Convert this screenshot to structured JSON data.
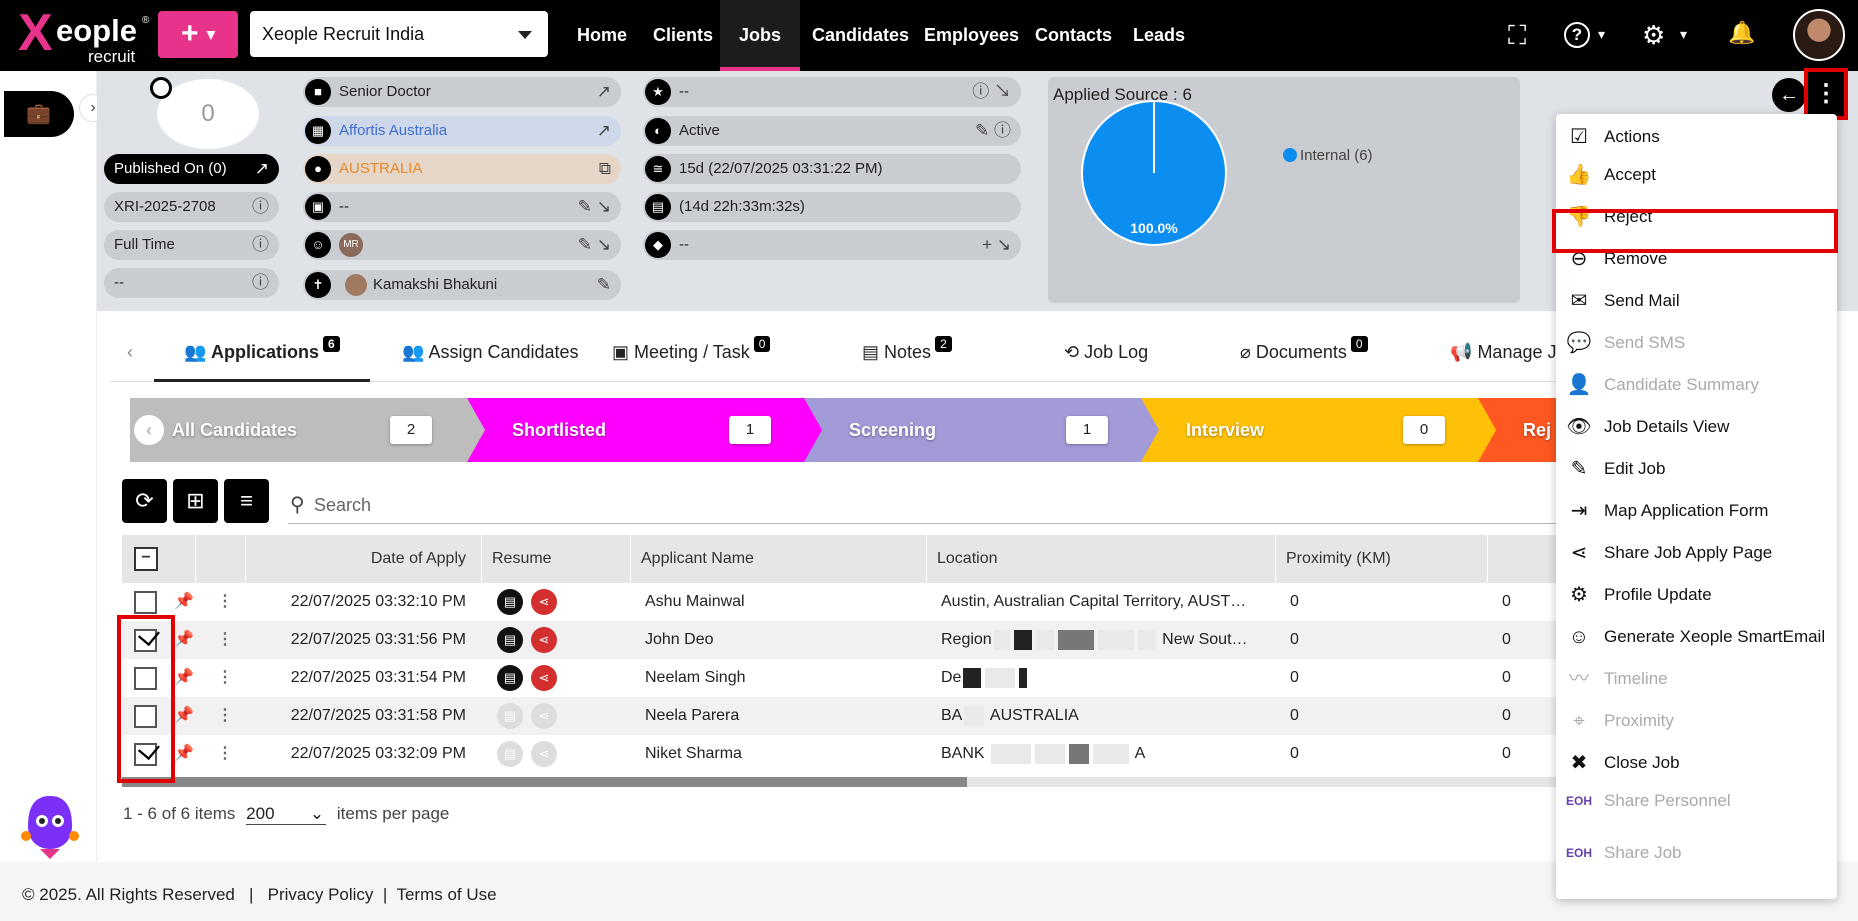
{
  "nav": {
    "brand_x": "X",
    "brand_rest": "eople",
    "brand_sub": "recruit",
    "brand_reg": "®",
    "plus_label": "+",
    "plus_caret": "▾",
    "org": "Xeople Recruit India",
    "menu": [
      {
        "label": "Home"
      },
      {
        "label": "Clients"
      },
      {
        "label": "Jobs",
        "active": true
      },
      {
        "label": "Candidates"
      },
      {
        "label": "Employees"
      },
      {
        "label": "Contacts"
      },
      {
        "label": "Leads"
      }
    ],
    "icons": {
      "fullscreen": "⛶",
      "help": "?",
      "settings": "⚙",
      "bell": "🔔",
      "caret": "▾"
    }
  },
  "side": {
    "briefcase_icon": "💼",
    "chevron": "›"
  },
  "job": {
    "score": "0",
    "published": "Published On (0)",
    "code": "XRI-2025-2708",
    "type": "Full Time",
    "misc": "--",
    "title": "Senior Doctor",
    "client": "Affortis Australia",
    "country": "AUSTRALIA",
    "field1": "--",
    "recruiter_initials": "MR",
    "owner": "Kamakshi Bhakuni",
    "rating": "--",
    "status": "Active",
    "age": "15d (22/07/2025 03:31:22 PM)",
    "timer": "(14d 22h:33m:32s)",
    "tags": "--"
  },
  "chart_data": {
    "type": "pie",
    "title": "Applied Source : 6",
    "categories": [
      "Internal (6)"
    ],
    "values": [
      100.0
    ],
    "data_labels": [
      "100.0%"
    ],
    "colors": [
      "#0b8ef0"
    ],
    "legend": "right"
  },
  "tabs": [
    {
      "label": "Applications",
      "count": "6",
      "active": true
    },
    {
      "label": "Assign Candidates",
      "count": ""
    },
    {
      "label": "Meeting / Task",
      "count": "0"
    },
    {
      "label": "Notes",
      "count": "2"
    },
    {
      "label": "Job Log",
      "count": ""
    },
    {
      "label": "Documents",
      "count": "0"
    },
    {
      "label": "Manage J",
      "count": ""
    }
  ],
  "stages": [
    {
      "label": "All Candidates",
      "count": "2",
      "color": "#bdbdbd"
    },
    {
      "label": "Shortlisted",
      "count": "1",
      "color": "#ff00ff"
    },
    {
      "label": "Screening",
      "count": "1",
      "color": "#a29bd8"
    },
    {
      "label": "Interview",
      "count": "0",
      "color": "#ffc107"
    },
    {
      "label": "Rej",
      "count": "",
      "color": "#ff5722"
    }
  ],
  "toolbar": {
    "search_placeholder": "Search",
    "refresh_icon": "⟳",
    "tree_icon": "⊞",
    "filter_icon": "≡"
  },
  "grid": {
    "headers": {
      "date": "Date of Apply",
      "resume": "Resume",
      "name": "Applicant Name",
      "location": "Location",
      "proximity": "Proximity (KM)"
    },
    "rows": [
      {
        "checked": false,
        "date": "22/07/2025 03:32:10 PM",
        "name": "Ashu Mainwal",
        "location": "Austin, Australian Capital Territory, AUST…",
        "prox": "0",
        "extra": "0",
        "resume": true
      },
      {
        "checked": true,
        "date": "22/07/2025 03:31:56 PM",
        "name": "John Deo",
        "location_a": "Region",
        "location_b": "New Sout…",
        "prox": "0",
        "extra": "0",
        "resume": true
      },
      {
        "checked": false,
        "date": "22/07/2025 03:31:54 PM",
        "name": "Neelam Singh",
        "location_a": "De",
        "prox": "0",
        "extra": "0",
        "resume": true
      },
      {
        "checked": false,
        "date": "22/07/2025 03:31:58 PM",
        "name": "Neela Parera",
        "location_a": "BA",
        "location_b": "AUSTRALIA",
        "prox": "0",
        "extra": "0",
        "resume": false
      },
      {
        "checked": true,
        "date": "22/07/2025 03:32:09 PM",
        "name": "Niket Sharma",
        "location_a": "BANK",
        "location_b": "A",
        "prox": "0",
        "extra": "0",
        "resume": false
      }
    ]
  },
  "pager": {
    "range": "1 - 6 of 6 items",
    "size": "200",
    "suffix": "items per page"
  },
  "footer": {
    "copy": "© 2025. All Rights Reserved",
    "sep": "|",
    "privacy": "Privacy Policy",
    "terms": "Terms of Use"
  },
  "dropdown": [
    {
      "label": "Actions",
      "icon": "☑",
      "disabled": false
    },
    {
      "label": "Accept",
      "icon": "👍",
      "disabled": false
    },
    {
      "label": "Reject",
      "icon": "👎",
      "disabled": false
    },
    {
      "label": "Remove",
      "icon": "⊖",
      "disabled": false
    },
    {
      "label": "Send Mail",
      "icon": "✉",
      "disabled": false
    },
    {
      "label": "Send SMS",
      "icon": "💬",
      "disabled": true
    },
    {
      "label": "Candidate Summary",
      "icon": "👤",
      "disabled": true
    },
    {
      "label": "Job Details View",
      "icon": "👁",
      "disabled": false
    },
    {
      "label": "Edit Job",
      "icon": "✎",
      "disabled": false
    },
    {
      "label": "Map Application Form",
      "icon": "⇥",
      "disabled": false
    },
    {
      "label": "Share Job Apply Page",
      "icon": "⋖",
      "disabled": false
    },
    {
      "label": "Profile Update",
      "icon": "⚙",
      "disabled": false
    },
    {
      "label": "Generate Xeople SmartEmail",
      "icon": "☺",
      "disabled": false
    },
    {
      "label": "Timeline",
      "icon": "〰",
      "disabled": true
    },
    {
      "label": "Proximity",
      "icon": "⌖",
      "disabled": true
    },
    {
      "label": "Close Job",
      "icon": "✖",
      "disabled": false
    },
    {
      "label": "Share Personnel",
      "icon": "EOH",
      "disabled": true
    },
    {
      "label": "Share Job",
      "icon": "EOH",
      "disabled": true
    }
  ]
}
